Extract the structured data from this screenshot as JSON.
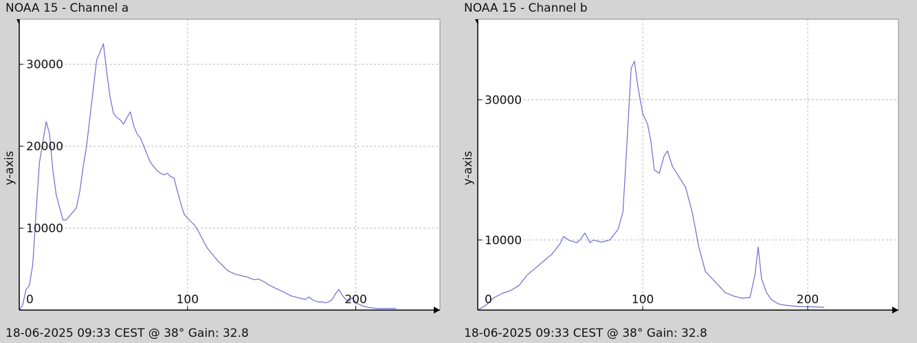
{
  "chart_data": [
    {
      "type": "line",
      "title": "NOAA 15 - Channel a",
      "footer": "18-06-2025 09:33 CEST @ 38° Gain: 32.8",
      "ylabel": "y-axis",
      "xlim": [
        0,
        250
      ],
      "ylim": [
        0,
        35500
      ],
      "xticks": [
        0,
        100,
        200
      ],
      "yticks": [
        10000,
        20000,
        30000
      ],
      "grid": true,
      "series": [
        {
          "color": "#6a6ad0",
          "points": [
            [
              0,
              0
            ],
            [
              2,
              600
            ],
            [
              4,
              2500
            ],
            [
              6,
              3000
            ],
            [
              8,
              5500
            ],
            [
              10,
              12000
            ],
            [
              12,
              18000
            ],
            [
              14,
              20500
            ],
            [
              16,
              23000
            ],
            [
              18,
              21500
            ],
            [
              20,
              17000
            ],
            [
              22,
              14000
            ],
            [
              24,
              12500
            ],
            [
              26,
              11000
            ],
            [
              28,
              11000
            ],
            [
              30,
              11500
            ],
            [
              32,
              12000
            ],
            [
              34,
              12500
            ],
            [
              36,
              14500
            ],
            [
              38,
              17500
            ],
            [
              40,
              20000
            ],
            [
              42,
              23500
            ],
            [
              44,
              27000
            ],
            [
              46,
              30500
            ],
            [
              48,
              31500
            ],
            [
              50,
              32500
            ],
            [
              52,
              29000
            ],
            [
              54,
              26000
            ],
            [
              56,
              24000
            ],
            [
              58,
              23500
            ],
            [
              60,
              23200
            ],
            [
              62,
              22700
            ],
            [
              64,
              23500
            ],
            [
              66,
              24200
            ],
            [
              68,
              22500
            ],
            [
              70,
              21500
            ],
            [
              72,
              21000
            ],
            [
              74,
              20000
            ],
            [
              76,
              19000
            ],
            [
              78,
              18000
            ],
            [
              80,
              17500
            ],
            [
              82,
              17000
            ],
            [
              84,
              16700
            ],
            [
              86,
              16500
            ],
            [
              88,
              16700
            ],
            [
              90,
              16300
            ],
            [
              92,
              16100
            ],
            [
              94,
              14500
            ],
            [
              96,
              13000
            ],
            [
              98,
              11700
            ],
            [
              100,
              11200
            ],
            [
              102,
              10800
            ],
            [
              104,
              10400
            ],
            [
              106,
              9800
            ],
            [
              108,
              9000
            ],
            [
              110,
              8200
            ],
            [
              112,
              7500
            ],
            [
              114,
              7000
            ],
            [
              116,
              6500
            ],
            [
              118,
              6000
            ],
            [
              120,
              5600
            ],
            [
              122,
              5200
            ],
            [
              124,
              4800
            ],
            [
              126,
              4600
            ],
            [
              128,
              4400
            ],
            [
              130,
              4300
            ],
            [
              132,
              4200
            ],
            [
              134,
              4100
            ],
            [
              136,
              4000
            ],
            [
              138,
              3800
            ],
            [
              140,
              3700
            ],
            [
              142,
              3800
            ],
            [
              144,
              3600
            ],
            [
              146,
              3400
            ],
            [
              148,
              3100
            ],
            [
              150,
              2900
            ],
            [
              152,
              2700
            ],
            [
              154,
              2500
            ],
            [
              156,
              2300
            ],
            [
              158,
              2100
            ],
            [
              160,
              1900
            ],
            [
              162,
              1700
            ],
            [
              164,
              1600
            ],
            [
              166,
              1500
            ],
            [
              168,
              1400
            ],
            [
              170,
              1300
            ],
            [
              172,
              1600
            ],
            [
              174,
              1300
            ],
            [
              176,
              1100
            ],
            [
              178,
              1000
            ],
            [
              180,
              1000
            ],
            [
              182,
              900
            ],
            [
              184,
              1000
            ],
            [
              186,
              1300
            ],
            [
              188,
              2000
            ],
            [
              190,
              2500
            ],
            [
              192,
              1800
            ],
            [
              194,
              1300
            ],
            [
              196,
              1100
            ],
            [
              198,
              1500
            ],
            [
              200,
              900
            ],
            [
              202,
              700
            ],
            [
              204,
              500
            ],
            [
              206,
              400
            ],
            [
              208,
              300
            ],
            [
              210,
              250
            ],
            [
              212,
              200
            ],
            [
              214,
              200
            ],
            [
              216,
              200
            ],
            [
              218,
              200
            ],
            [
              220,
              200
            ],
            [
              222,
              200
            ],
            [
              224,
              200
            ]
          ]
        }
      ]
    },
    {
      "type": "line",
      "title": "NOAA 15 - Channel b",
      "footer": "18-06-2025 09:33 CEST @ 38° Gain: 32.8",
      "ylabel": "y-axis",
      "xlim": [
        0,
        255
      ],
      "ylim": [
        0,
        41500
      ],
      "xticks": [
        0,
        100,
        200
      ],
      "yticks": [
        10000,
        30000
      ],
      "grid": true,
      "series": [
        {
          "color": "#6a6ad0",
          "points": [
            [
              0,
              0
            ],
            [
              5,
              700
            ],
            [
              10,
              1800
            ],
            [
              15,
              2400
            ],
            [
              20,
              2800
            ],
            [
              25,
              3500
            ],
            [
              30,
              5000
            ],
            [
              35,
              6000
            ],
            [
              40,
              7000
            ],
            [
              45,
              8000
            ],
            [
              50,
              9500
            ],
            [
              52,
              10500
            ],
            [
              55,
              10000
            ],
            [
              60,
              9600
            ],
            [
              62,
              10000
            ],
            [
              65,
              11000
            ],
            [
              68,
              9600
            ],
            [
              70,
              10000
            ],
            [
              75,
              9700
            ],
            [
              80,
              10000
            ],
            [
              85,
              11500
            ],
            [
              88,
              14000
            ],
            [
              90,
              22000
            ],
            [
              93,
              34500
            ],
            [
              95,
              35500
            ],
            [
              97,
              32000
            ],
            [
              100,
              28000
            ],
            [
              103,
              26500
            ],
            [
              105,
              24000
            ],
            [
              107,
              20000
            ],
            [
              110,
              19500
            ],
            [
              113,
              22000
            ],
            [
              115,
              22700
            ],
            [
              118,
              20500
            ],
            [
              122,
              19000
            ],
            [
              126,
              17500
            ],
            [
              130,
              14000
            ],
            [
              134,
              9000
            ],
            [
              138,
              5500
            ],
            [
              142,
              4500
            ],
            [
              146,
              3500
            ],
            [
              150,
              2500
            ],
            [
              155,
              2000
            ],
            [
              160,
              1700
            ],
            [
              165,
              1800
            ],
            [
              168,
              5000
            ],
            [
              170,
              9000
            ],
            [
              172,
              4500
            ],
            [
              175,
              2500
            ],
            [
              178,
              1500
            ],
            [
              182,
              900
            ],
            [
              186,
              700
            ],
            [
              190,
              600
            ],
            [
              195,
              500
            ],
            [
              200,
              500
            ],
            [
              204,
              450
            ],
            [
              210,
              400
            ]
          ]
        }
      ]
    }
  ]
}
